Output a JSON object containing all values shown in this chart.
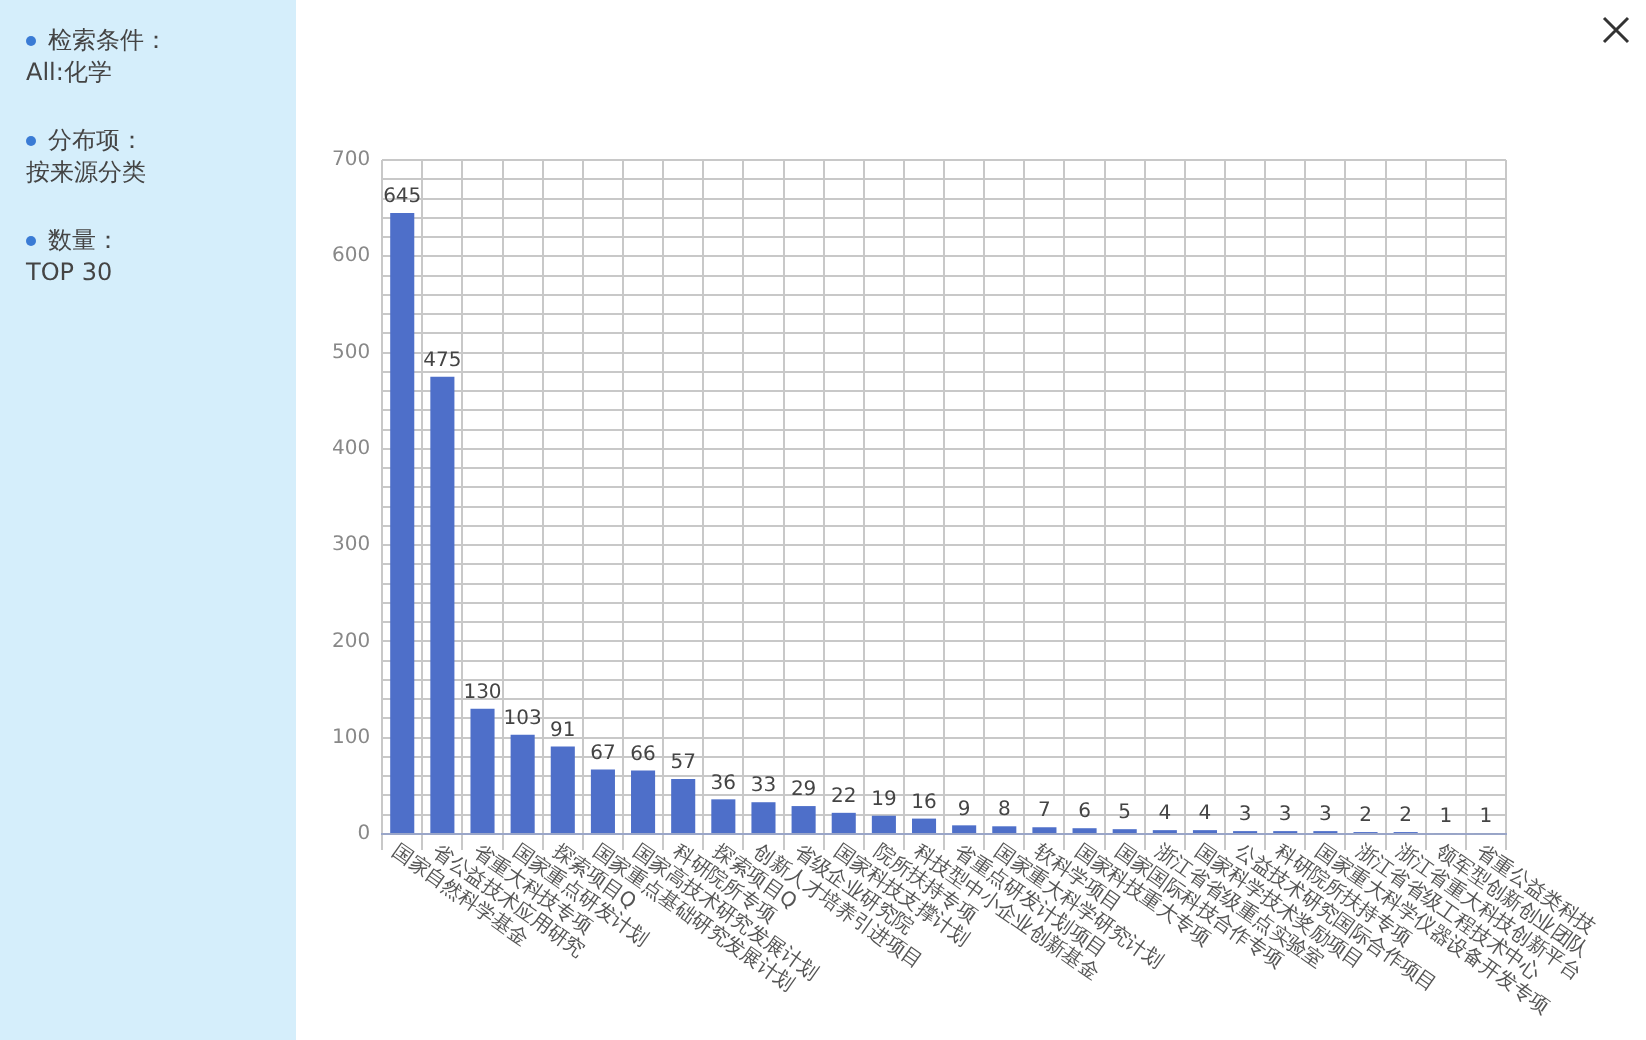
{
  "chart_data": {
    "type": "bar",
    "categories": [
      "国家自然科学基金",
      "省公益技术应用研究",
      "省重大科技专项",
      "国家重点研发计划",
      "探索项目Q",
      "国家重点基础研究发展计划",
      "国家高技术研究发展计划",
      "科研院所专项",
      "探索项目Q",
      "创新人才培养引进项目",
      "省级企业研究院",
      "国家科技支撑计划",
      "院所扶持专项",
      "科技型中小企业创新基金",
      "省重点研发计划项目",
      "国家重大科学研究计划",
      "软科学项目",
      "国家科技重大专项",
      "国家国际科技合作专项",
      "浙江省省级重点实验室",
      "国家科学技术奖励项目",
      "公益技术研究国际合作项目",
      "科研院所扶持专项",
      "国家重大科学仪器设备开发专项",
      "浙江省省级工程技术中心",
      "浙江省重大科技创新平台",
      "领军型创新创业团队",
      "省重公益类科技"
    ],
    "values": [
      645,
      475,
      130,
      103,
      91,
      67,
      66,
      57,
      36,
      33,
      29,
      22,
      19,
      16,
      9,
      8,
      7,
      6,
      5,
      4,
      4,
      3,
      3,
      3,
      2,
      2,
      1,
      1
    ],
    "color": "#4e6fc9",
    "ylim": [
      0,
      700
    ],
    "yticks": [
      0,
      {
        "value": 20,
        "label": null
      },
      {
        "value": 40,
        "label": null
      },
      {
        "value": 60,
        "label": null
      },
      {
        "value": 80,
        "label": null
      },
      100,
      {
        "value": 120,
        "label": null
      },
      {
        "value": 140,
        "label": null
      },
      {
        "value": 160,
        "label": null
      },
      {
        "value": 180,
        "label": null
      },
      200,
      {
        "value": 220,
        "label": null
      },
      {
        "value": 240,
        "label": null
      },
      {
        "value": 260,
        "label": null
      },
      {
        "value": 280,
        "label": null
      },
      300,
      {
        "value": 320,
        "label": null
      },
      {
        "value": 340,
        "label": null
      },
      {
        "value": 360,
        "label": null
      },
      {
        "value": 380,
        "label": null
      },
      400,
      {
        "value": 420,
        "label": null
      },
      {
        "value": 440,
        "label": null
      },
      {
        "value": 460,
        "label": null
      },
      {
        "value": 480,
        "label": null
      },
      500,
      {
        "value": 520,
        "label": null
      },
      {
        "value": 540,
        "label": null
      },
      {
        "value": 560,
        "label": null
      },
      {
        "value": 580,
        "label": null
      },
      600,
      {
        "value": 620,
        "label": null
      },
      {
        "value": 640,
        "label": null
      },
      {
        "value": 660,
        "label": null
      },
      {
        "value": 680,
        "label": null
      },
      700
    ],
    "grid": true,
    "data_labels": true,
    "legend": false,
    "annotations": [
      "检索条件：",
      "All:化学",
      "分布项：",
      "按来源分类",
      "数量：",
      "TOP 30"
    ]
  }
}
